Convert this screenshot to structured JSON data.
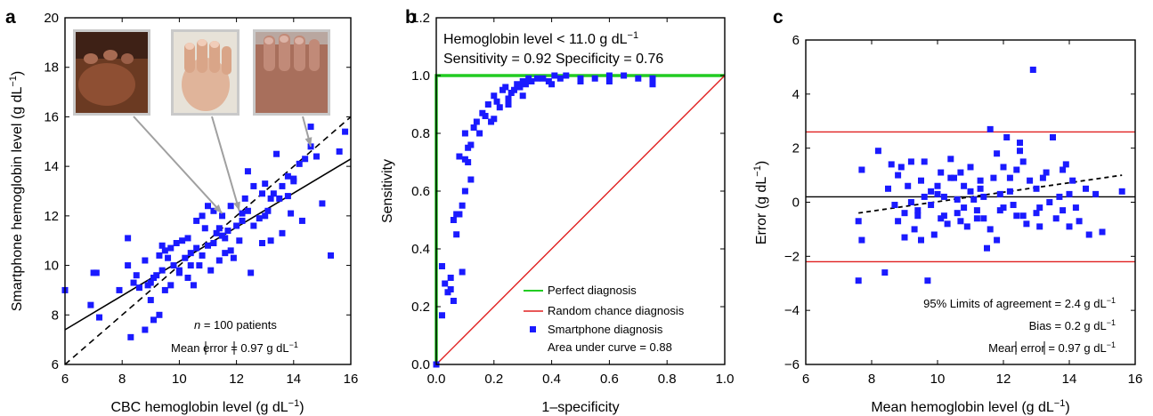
{
  "chart_data": [
    {
      "panel": "a",
      "type": "scatter",
      "xlabel": "CBC hemoglobin level (g dL⁻¹)",
      "ylabel": "Smartphone hemoglobin level (g dL⁻¹)",
      "xlim": [
        6,
        16
      ],
      "ylim": [
        6,
        20
      ],
      "xticks": [
        6,
        8,
        10,
        12,
        14,
        16
      ],
      "yticks": [
        6,
        8,
        10,
        12,
        14,
        16,
        18,
        20
      ],
      "annotations": [
        "n = 100 patients",
        "Mean |error| = 0.97 g dL⁻¹"
      ],
      "annotation_parts": {
        "n_italic": "n",
        "n_rest": " = 100 patients",
        "mean_pre": "Mean ",
        "mean_mid": "error",
        "mean_post": " = 0.97 g dL",
        "unit_sup": "−1"
      },
      "axis_parts": {
        "x_pre": "CBC hemoglobin level (g dL",
        "x_sup": "−1",
        "x_post": ")",
        "y_pre": "Smartphone hemoglobin level (g dL",
        "y_sup": "−1",
        "y_post": ")"
      },
      "insets": [
        "fingernail-photo-1",
        "fingernail-photo-2",
        "fingernail-photo-3"
      ],
      "inset_targets": [
        [
          11.5,
          12.1
        ],
        [
          12.1,
          12.2
        ],
        [
          14.6,
          14.8
        ]
      ],
      "fit_line": {
        "x": [
          6,
          16
        ],
        "y": [
          7.4,
          14.3
        ],
        "style": "solid"
      },
      "identity_line": {
        "x": [
          6,
          16
        ],
        "y": [
          6,
          16
        ],
        "style": "dashed"
      },
      "series": [
        {
          "marker": "square",
          "color": "#1a1aff",
          "x": [
            6.0,
            6.9,
            7.1,
            7.2,
            7.9,
            8.2,
            8.3,
            8.4,
            8.5,
            8.6,
            8.8,
            8.9,
            9.0,
            9.1,
            9.2,
            9.3,
            9.4,
            9.5,
            9.6,
            9.7,
            9.8,
            9.9,
            10.0,
            10.1,
            10.2,
            10.3,
            10.4,
            10.5,
            10.6,
            10.7,
            10.8,
            10.9,
            11.0,
            11.1,
            11.2,
            11.3,
            11.4,
            11.5,
            11.6,
            11.7,
            11.8,
            11.9,
            12.0,
            12.1,
            12.2,
            12.3,
            12.4,
            12.5,
            12.6,
            12.8,
            12.9,
            13.0,
            13.1,
            13.2,
            13.3,
            13.4,
            13.5,
            13.6,
            13.8,
            13.9,
            14.0,
            14.2,
            14.4,
            14.6,
            14.8,
            15.3,
            15.6,
            15.8,
            8.2,
            8.8,
            9.1,
            9.4,
            9.7,
            10.3,
            10.6,
            11.0,
            11.4,
            11.6,
            12.2,
            12.6,
            13.0,
            13.6,
            14.0,
            14.6,
            9.0,
            9.5,
            10.0,
            10.8,
            11.2,
            11.8,
            12.4,
            13.2,
            13.8,
            14.3,
            9.3,
            10.4,
            11.5,
            12.9,
            15.0,
            7.0
          ],
          "y": [
            9.0,
            8.4,
            9.7,
            7.9,
            9.0,
            11.1,
            7.1,
            9.3,
            9.6,
            9.1,
            7.4,
            9.2,
            8.6,
            7.8,
            9.6,
            10.4,
            9.8,
            9.0,
            10.3,
            9.2,
            10.0,
            10.9,
            9.7,
            11.0,
            10.3,
            11.1,
            10.5,
            9.2,
            10.7,
            10.0,
            10.4,
            11.5,
            10.8,
            9.8,
            10.9,
            11.3,
            10.2,
            12.0,
            11.1,
            11.4,
            12.4,
            10.3,
            11.6,
            11.0,
            12.1,
            12.7,
            12.2,
            9.7,
            11.6,
            11.9,
            12.9,
            13.3,
            12.2,
            11.0,
            12.9,
            14.5,
            12.7,
            13.2,
            12.8,
            12.1,
            13.5,
            14.1,
            14.3,
            14.8,
            14.4,
            10.4,
            14.6,
            15.4,
            10.0,
            10.2,
            9.5,
            10.8,
            10.7,
            9.5,
            11.8,
            12.4,
            11.5,
            10.5,
            11.8,
            13.2,
            12.0,
            11.3,
            13.4,
            15.6,
            9.3,
            10.6,
            9.8,
            12.0,
            12.2,
            10.6,
            13.8,
            12.7,
            13.6,
            11.8,
            8.0,
            10.0,
            11.2,
            10.9,
            12.5,
            9.7
          ]
        }
      ]
    },
    {
      "panel": "b",
      "type": "line",
      "title_lines": [
        "Hemoglobin level < 11.0 g dL⁻¹",
        "Sensitivity = 0.92 Specificity = 0.76"
      ],
      "title_parts": {
        "l1_pre": "Hemoglobin level < 11.0 g dL",
        "l1_sup": "−1",
        "l2": "Sensitivity = 0.92 Specificity = 0.76"
      },
      "xlabel": "1–specificity",
      "ylabel": "Sensitivity",
      "xlim": [
        0,
        1
      ],
      "ylim": [
        0,
        1.2
      ],
      "xticks": [
        0,
        0.2,
        0.4,
        0.6,
        0.8,
        1.0
      ],
      "xtick_labels": [
        "0.0",
        "0.2",
        "0.4",
        "0.6",
        "0.8",
        "1.0"
      ],
      "yticks": [
        0,
        0.2,
        0.4,
        0.6,
        0.8,
        1.0,
        1.2
      ],
      "ytick_labels": [
        "0.0",
        "0.2",
        "0.4",
        "0.6",
        "0.8",
        "1.0",
        "1.2"
      ],
      "legend": [
        "Perfect diagnosis",
        "Random chance diagnosis",
        "Smartphone diagnosis"
      ],
      "legend_note": "Area under curve = 0.88",
      "legend_position": "bottom-right",
      "series": [
        {
          "name": "Perfect diagnosis",
          "color": "#22cc22",
          "x": [
            0,
            0,
            1
          ],
          "y": [
            0,
            1,
            1
          ]
        },
        {
          "name": "Random chance diagnosis",
          "color": "#e02020",
          "x": [
            0,
            1
          ],
          "y": [
            0,
            1
          ]
        },
        {
          "name": "Smartphone diagnosis",
          "color": "#1a1aff",
          "marker": "square",
          "x": [
            0.0,
            0.02,
            0.04,
            0.05,
            0.06,
            0.07,
            0.08,
            0.09,
            0.1,
            0.1,
            0.11,
            0.12,
            0.13,
            0.14,
            0.15,
            0.16,
            0.17,
            0.18,
            0.19,
            0.2,
            0.21,
            0.22,
            0.23,
            0.24,
            0.25,
            0.26,
            0.27,
            0.28,
            0.29,
            0.3,
            0.31,
            0.32,
            0.33,
            0.35,
            0.37,
            0.39,
            0.41,
            0.43,
            0.45,
            0.5,
            0.55,
            0.6,
            0.65,
            0.75,
            0.02,
            0.03,
            0.05,
            0.06,
            0.07,
            0.08,
            0.09,
            0.1,
            0.11,
            0.12,
            0.2,
            0.25,
            0.3,
            0.4,
            0.5,
            0.6,
            0.7,
            0.75
          ],
          "y": [
            0.0,
            0.17,
            0.25,
            0.3,
            0.22,
            0.52,
            0.72,
            0.55,
            0.71,
            0.8,
            0.7,
            0.76,
            0.82,
            0.84,
            0.8,
            0.87,
            0.86,
            0.9,
            0.84,
            0.93,
            0.91,
            0.89,
            0.95,
            0.96,
            0.92,
            0.94,
            0.95,
            0.97,
            0.96,
            0.98,
            0.97,
            0.99,
            0.98,
            0.99,
            0.99,
            0.98,
            1.0,
            0.99,
            1.0,
            0.98,
            0.99,
            0.98,
            1.0,
            0.97,
            0.34,
            0.28,
            0.26,
            0.5,
            0.45,
            0.52,
            0.32,
            0.6,
            0.75,
            0.64,
            0.85,
            0.9,
            0.93,
            0.97,
            0.99,
            1.0,
            0.99,
            0.99
          ]
        }
      ]
    },
    {
      "panel": "c",
      "type": "scatter",
      "xlabel": "Mean hemoglobin level (g dL⁻¹)",
      "ylabel": "Error (g dL⁻¹)",
      "xlim": [
        6,
        16
      ],
      "ylim": [
        -6,
        6
      ],
      "xticks": [
        6,
        8,
        10,
        12,
        14,
        16
      ],
      "yticks": [
        -6,
        -4,
        -2,
        0,
        2,
        4,
        6
      ],
      "ytick_labels": [
        "−6",
        "−4",
        "−2",
        "0",
        "2",
        "4",
        "6"
      ],
      "annotations": [
        "95% Limits of agreement = 2.4 g dL⁻¹",
        "Bias = 0.2 g dL⁻¹",
        "Mean |error| = 0.97 g dL⁻¹"
      ],
      "annotation_parts": {
        "loa": "95% Limits of agreement = 2.4 g dL",
        "bias": "Bias = 0.2 g dL",
        "mean_pre": "Mean ",
        "mean_mid": "error",
        "mean_post": " = 0.97 g dL",
        "unit_sup": "−1"
      },
      "axis_parts": {
        "x_pre": "Mean hemoglobin level (g dL",
        "x_sup": "−1",
        "x_post": ")",
        "y_pre": "Error (g dL",
        "y_sup": "−1",
        "y_post": ")"
      },
      "reference_lines": [
        {
          "y": 2.6,
          "color": "#e02020",
          "style": "solid"
        },
        {
          "y": 0.2,
          "color": "#000000",
          "style": "solid"
        },
        {
          "y": -2.2,
          "color": "#e02020",
          "style": "solid"
        }
      ],
      "trend_line": {
        "x": [
          7.6,
          15.6
        ],
        "y": [
          -0.4,
          1.0
        ],
        "style": "dashed"
      },
      "series": [
        {
          "marker": "square",
          "color": "#1a1aff",
          "x": [
            7.6,
            7.6,
            7.7,
            7.7,
            8.2,
            8.4,
            8.6,
            8.7,
            8.8,
            8.9,
            9.0,
            9.1,
            9.2,
            9.3,
            9.4,
            9.5,
            9.6,
            9.7,
            9.8,
            9.9,
            10.0,
            10.1,
            10.2,
            10.3,
            10.4,
            10.5,
            10.6,
            10.7,
            10.8,
            10.9,
            11.0,
            11.1,
            11.2,
            11.3,
            11.4,
            11.5,
            11.6,
            11.7,
            11.8,
            11.9,
            12.0,
            12.1,
            12.2,
            12.3,
            12.4,
            12.5,
            12.6,
            12.7,
            12.9,
            13.0,
            13.1,
            13.3,
            13.5,
            13.7,
            13.8,
            13.9,
            14.0,
            14.1,
            14.3,
            14.5,
            14.6,
            15.0,
            15.6,
            8.5,
            8.8,
            9.0,
            9.2,
            9.4,
            9.6,
            9.8,
            10.0,
            10.2,
            10.4,
            10.6,
            10.8,
            11.0,
            11.2,
            11.4,
            11.6,
            11.8,
            12.0,
            12.2,
            12.4,
            12.6,
            12.8,
            13.0,
            13.2,
            13.4,
            13.6,
            13.8,
            14.0,
            14.2,
            9.5,
            10.1,
            10.7,
            11.3,
            11.9,
            12.5,
            13.1,
            14.8
          ],
          "y": [
            -0.7,
            -2.9,
            1.2,
            -1.4,
            1.9,
            -2.6,
            1.4,
            -0.1,
            -0.7,
            1.3,
            -0.4,
            0.6,
            1.5,
            -1.0,
            -0.3,
            0.8,
            0.2,
            -2.9,
            0.4,
            -1.2,
            0.3,
            -0.6,
            0.2,
            -0.8,
            1.6,
            0.9,
            -0.4,
            1.1,
            0.6,
            -0.9,
            0.4,
            0.1,
            -0.3,
            0.8,
            -0.6,
            -1.7,
            2.7,
            0.9,
            -1.4,
            0.3,
            1.3,
            2.4,
            0.9,
            -0.1,
            1.2,
            2.2,
            -0.5,
            -0.8,
            4.9,
            0.5,
            -0.2,
            1.1,
            2.4,
            0.2,
            -0.3,
            1.4,
            -0.9,
            0.8,
            -0.7,
            0.5,
            -1.2,
            -1.1,
            0.4,
            0.5,
            1.0,
            -1.3,
            0.0,
            -0.5,
            1.5,
            -0.1,
            0.6,
            -0.5,
            0.9,
            0.1,
            -0.2,
            1.3,
            -0.6,
            0.2,
            -1.0,
            1.8,
            -0.2,
            0.4,
            -0.5,
            1.5,
            0.8,
            -0.4,
            0.9,
            0.0,
            -0.6,
            1.2,
            0.3,
            -0.2,
            -1.4,
            1.1,
            -0.7,
            0.5,
            -0.3,
            1.9,
            -0.9,
            0.3
          ]
        }
      ]
    }
  ]
}
